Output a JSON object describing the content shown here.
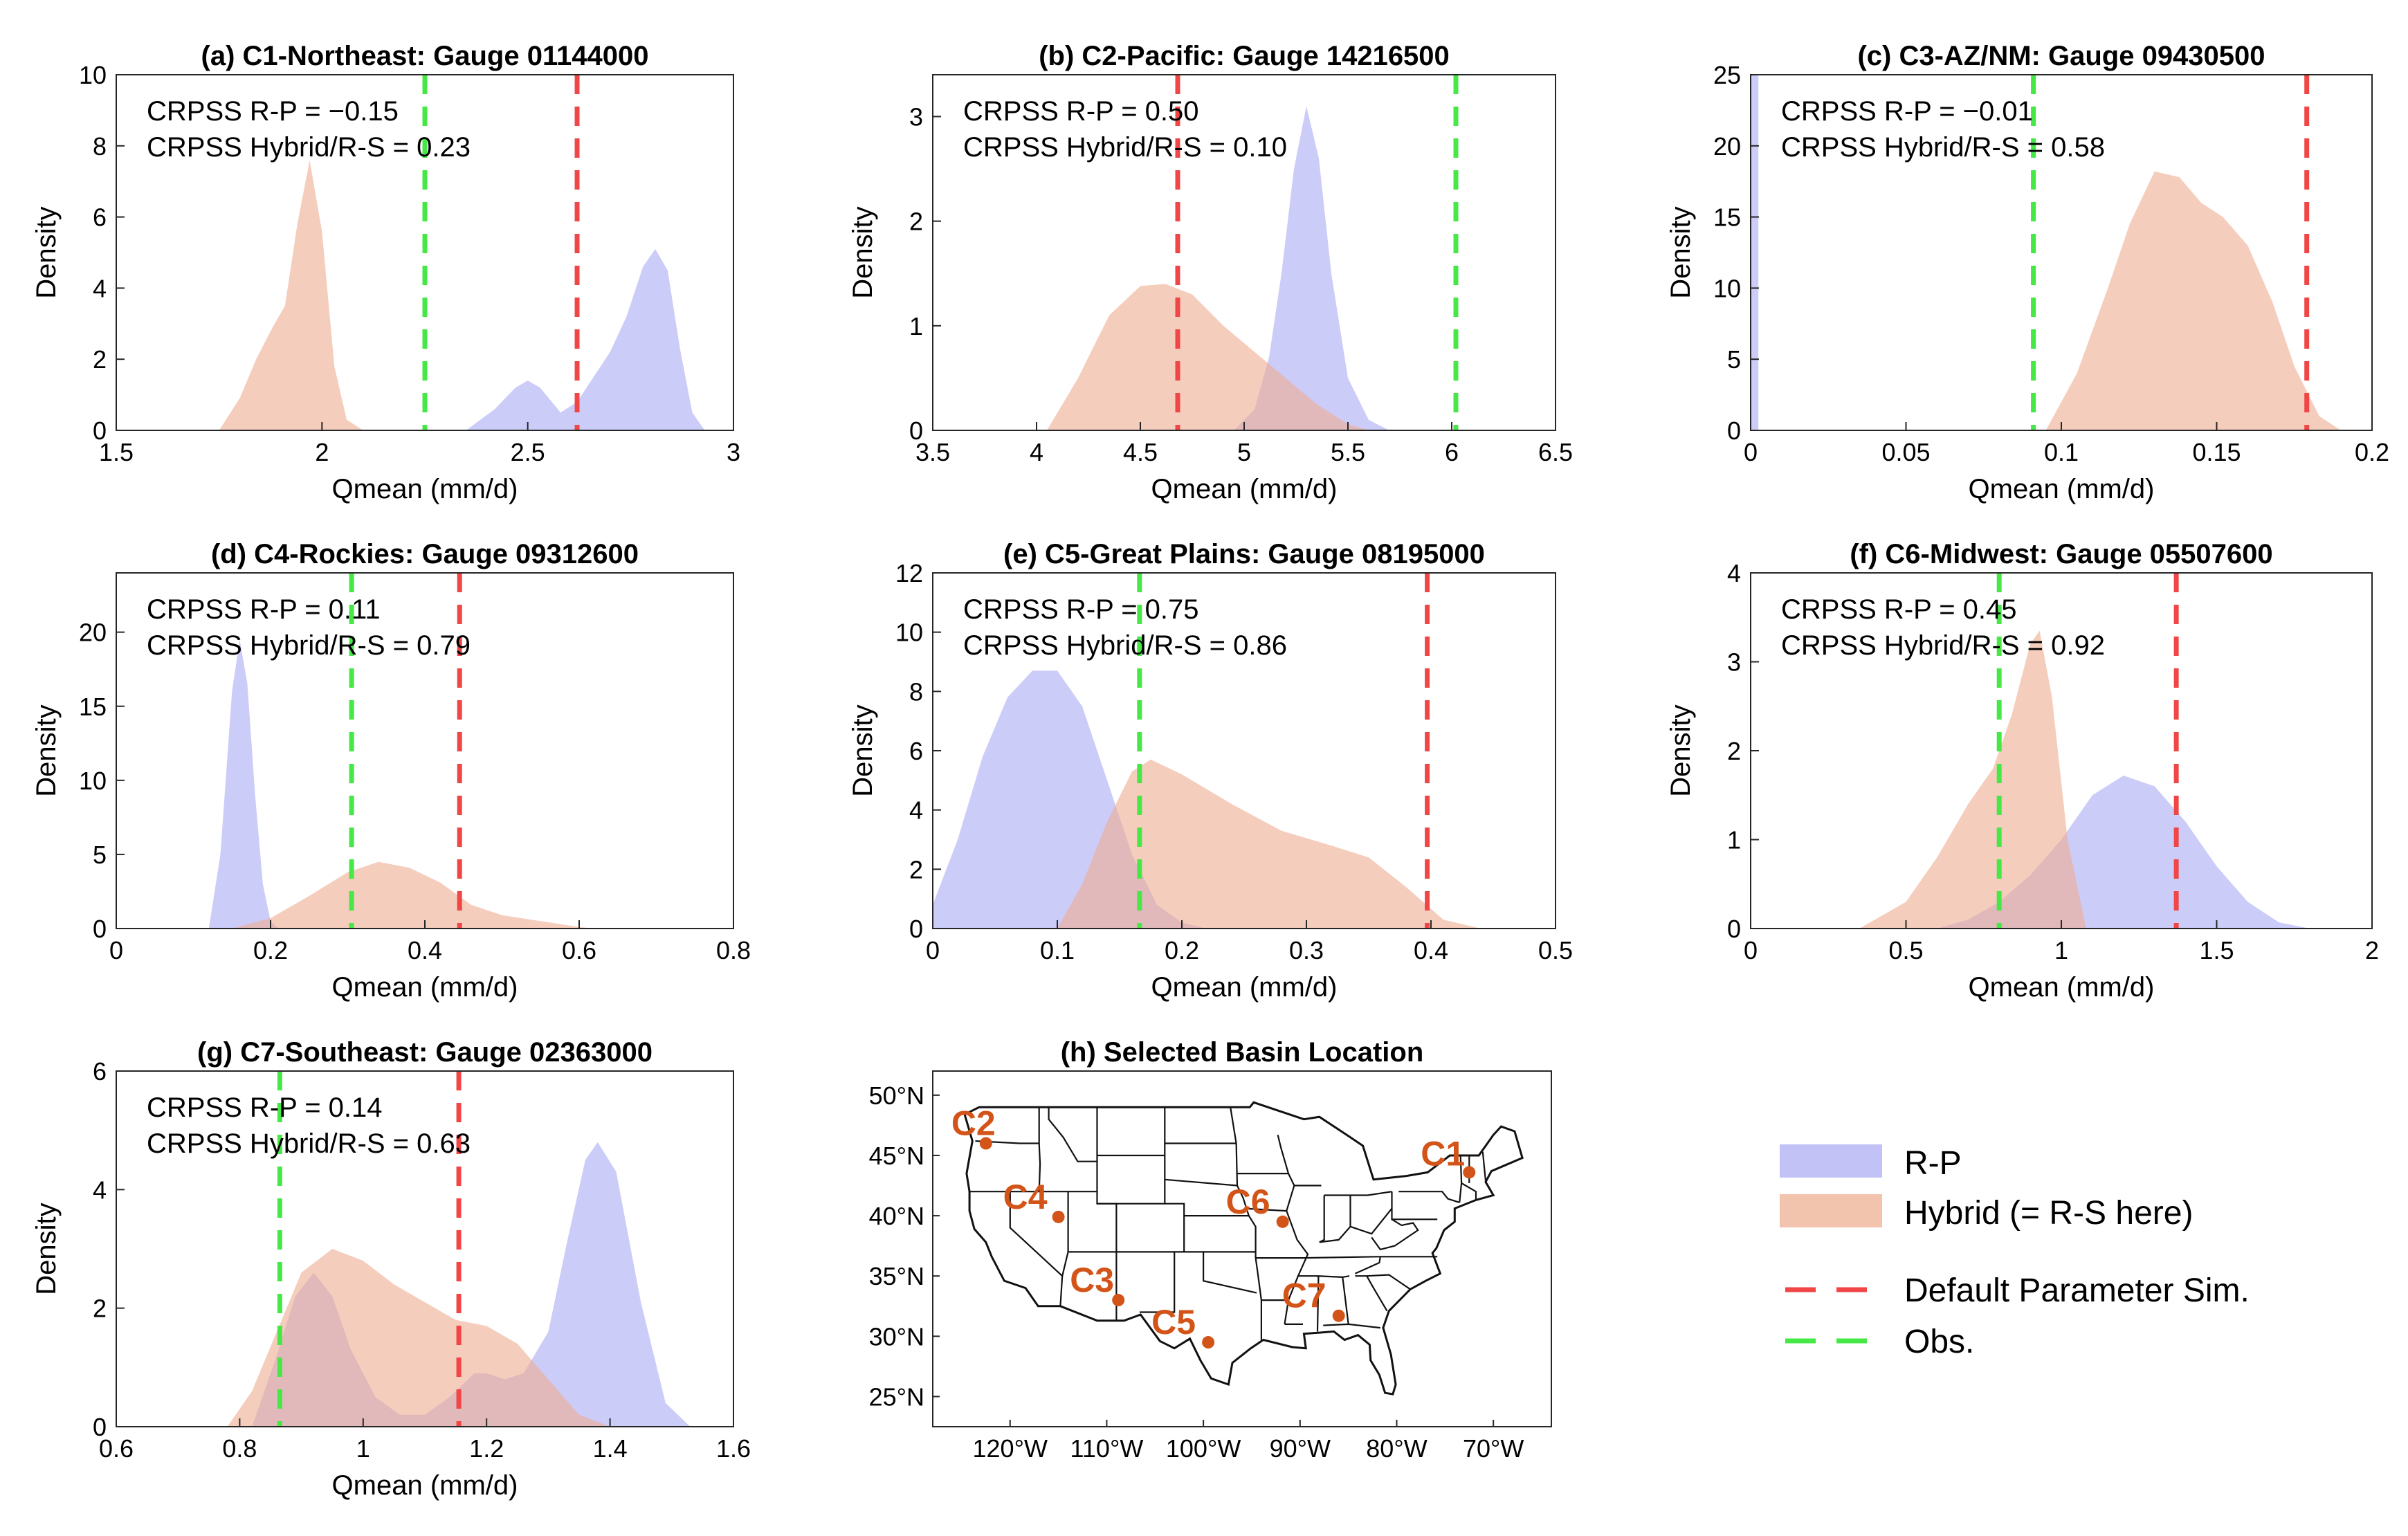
{
  "chart_data": [
    {
      "type": "area",
      "title": "(a) C1-Northeast: Gauge 01144000",
      "xlabel": "Qmean (mm/d)",
      "ylabel": "Density",
      "xlim": [
        1.5,
        3
      ],
      "ylim": [
        0,
        10
      ],
      "xticks": [
        "1.5",
        "2",
        "2.5",
        "3"
      ],
      "yticks": [
        "0",
        "2",
        "4",
        "6",
        "8",
        "10"
      ],
      "annotations": [
        "CRPSS R-P = −0.15",
        "CRPSS Hybrid/R-S = 0.23"
      ],
      "default_param_sim": 2.62,
      "obs": 2.25,
      "series": [
        {
          "name": "R-P",
          "x": [
            2.35,
            2.42,
            2.47,
            2.5,
            2.53,
            2.58,
            2.62,
            2.66,
            2.7,
            2.74,
            2.78,
            2.81,
            2.84,
            2.87,
            2.9,
            2.93
          ],
          "y": [
            0,
            0.6,
            1.2,
            1.4,
            1.2,
            0.5,
            0.8,
            1.5,
            2.2,
            3.2,
            4.6,
            5.1,
            4.5,
            2.3,
            0.5,
            0
          ]
        },
        {
          "name": "Hybrid (= R-S here)",
          "x": [
            1.75,
            1.8,
            1.84,
            1.88,
            1.91,
            1.94,
            1.97,
            2.0,
            2.03,
            2.06,
            2.1
          ],
          "y": [
            0,
            0.9,
            2.0,
            2.9,
            3.5,
            5.8,
            7.6,
            5.6,
            1.8,
            0.3,
            0
          ]
        }
      ]
    },
    {
      "type": "area",
      "title": "(b) C2-Pacific: Gauge 14216500",
      "xlabel": "Qmean (mm/d)",
      "ylabel": "Density",
      "xlim": [
        3.5,
        6.5
      ],
      "ylim": [
        0,
        3.4
      ],
      "xticks": [
        "3.5",
        "4",
        "4.5",
        "5",
        "5.5",
        "6",
        "6.5"
      ],
      "yticks": [
        "0",
        "1",
        "2",
        "3"
      ],
      "annotations": [
        "CRPSS R-P = 0.50",
        "CRPSS Hybrid/R-S = 0.10"
      ],
      "default_param_sim": 4.68,
      "obs": 6.02,
      "series": [
        {
          "name": "R-P",
          "x": [
            4.95,
            5.05,
            5.12,
            5.18,
            5.24,
            5.3,
            5.36,
            5.42,
            5.5,
            5.6,
            5.7
          ],
          "y": [
            0,
            0.2,
            0.7,
            1.5,
            2.5,
            3.1,
            2.6,
            1.5,
            0.5,
            0.1,
            0
          ]
        },
        {
          "name": "Hybrid (= R-S here)",
          "x": [
            4.05,
            4.2,
            4.35,
            4.5,
            4.62,
            4.75,
            4.9,
            5.05,
            5.2,
            5.35,
            5.5,
            5.6
          ],
          "y": [
            0,
            0.5,
            1.1,
            1.38,
            1.4,
            1.3,
            1.0,
            0.75,
            0.5,
            0.25,
            0.06,
            0
          ]
        }
      ]
    },
    {
      "type": "area",
      "title": "(c) C3-AZ/NM: Gauge 09430500",
      "xlabel": "Qmean (mm/d)",
      "ylabel": "Density",
      "xlim": [
        0,
        0.2
      ],
      "ylim": [
        0,
        25
      ],
      "xticks": [
        "0",
        "0.05",
        "0.1",
        "0.15",
        "0.2"
      ],
      "yticks": [
        "0",
        "5",
        "10",
        "15",
        "20",
        "25"
      ],
      "annotations": [
        "CRPSS R-P = −0.01",
        "CRPSS Hybrid/R-S = 0.58"
      ],
      "default_param_sim": 0.179,
      "obs": 0.091,
      "series": [
        {
          "name": "R-P",
          "x": [
            0,
            0,
            0.0025,
            0.0025
          ],
          "y": [
            0,
            25,
            25,
            0
          ]
        },
        {
          "name": "Hybrid (= R-S here)",
          "x": [
            0.095,
            0.105,
            0.115,
            0.122,
            0.13,
            0.138,
            0.145,
            0.152,
            0.16,
            0.168,
            0.175,
            0.183,
            0.19
          ],
          "y": [
            0,
            4,
            10,
            14.5,
            18.2,
            17.8,
            16,
            15,
            13,
            9,
            4.5,
            1,
            0
          ]
        }
      ]
    },
    {
      "type": "area",
      "title": "(d) C4-Rockies: Gauge 09312600",
      "xlabel": "Qmean (mm/d)",
      "ylabel": "Density",
      "xlim": [
        0,
        0.8
      ],
      "ylim": [
        0,
        24
      ],
      "xticks": [
        "0",
        "0.2",
        "0.4",
        "0.6",
        "0.8"
      ],
      "yticks": [
        "0",
        "5",
        "10",
        "15",
        "20"
      ],
      "annotations": [
        "CRPSS R-P = 0.11",
        "CRPSS Hybrid/R-S = 0.79"
      ],
      "default_param_sim": 0.445,
      "obs": 0.305,
      "series": [
        {
          "name": "R-P",
          "x": [
            0.12,
            0.135,
            0.15,
            0.16,
            0.17,
            0.18,
            0.19,
            0.2,
            0.21
          ],
          "y": [
            0,
            5,
            16,
            19.5,
            16.5,
            9,
            3,
            0.5,
            0
          ]
        },
        {
          "name": "Hybrid (= R-S here)",
          "x": [
            0.15,
            0.2,
            0.25,
            0.3,
            0.34,
            0.38,
            0.42,
            0.46,
            0.5,
            0.55,
            0.6,
            0.62
          ],
          "y": [
            0,
            0.7,
            2.2,
            3.8,
            4.5,
            4.1,
            3.1,
            1.6,
            0.9,
            0.5,
            0.1,
            0
          ]
        }
      ]
    },
    {
      "type": "area",
      "title": "(e) C5-Great Plains: Gauge 08195000",
      "xlabel": "Qmean (mm/d)",
      "ylabel": "Density",
      "xlim": [
        0,
        0.5
      ],
      "ylim": [
        0,
        12
      ],
      "xticks": [
        "0",
        "0.1",
        "0.2",
        "0.3",
        "0.4",
        "0.5"
      ],
      "yticks": [
        "0",
        "2",
        "4",
        "6",
        "8",
        "10",
        "12"
      ],
      "annotations": [
        "CRPSS R-P = 0.75",
        "CRPSS Hybrid/R-S = 0.86"
      ],
      "default_param_sim": 0.397,
      "obs": 0.166,
      "series": [
        {
          "name": "R-P",
          "x": [
            0,
            0.02,
            0.04,
            0.06,
            0.08,
            0.1,
            0.12,
            0.14,
            0.16,
            0.18,
            0.2,
            0.22
          ],
          "y": [
            0.8,
            3.0,
            5.8,
            7.8,
            8.7,
            8.7,
            7.5,
            5.0,
            2.5,
            0.8,
            0.2,
            0
          ]
        },
        {
          "name": "Hybrid (= R-S here)",
          "x": [
            0.1,
            0.12,
            0.14,
            0.16,
            0.175,
            0.2,
            0.24,
            0.28,
            0.32,
            0.35,
            0.38,
            0.41,
            0.44
          ],
          "y": [
            0,
            1.5,
            3.6,
            5.3,
            5.7,
            5.2,
            4.2,
            3.3,
            2.8,
            2.4,
            1.4,
            0.3,
            0
          ]
        }
      ]
    },
    {
      "type": "area",
      "title": "(f) C6-Midwest: Gauge 05507600",
      "xlabel": "Qmean (mm/d)",
      "ylabel": "Density",
      "xlim": [
        0,
        2
      ],
      "ylim": [
        0,
        4
      ],
      "xticks": [
        "0",
        "0.5",
        "1",
        "1.5",
        "2"
      ],
      "yticks": [
        "0",
        "1",
        "2",
        "3",
        "4"
      ],
      "annotations": [
        "CRPSS R-P = 0.45",
        "CRPSS Hybrid/R-S = 0.92"
      ],
      "default_param_sim": 1.37,
      "obs": 0.8,
      "series": [
        {
          "name": "R-P",
          "x": [
            0.6,
            0.7,
            0.8,
            0.9,
            1.0,
            1.1,
            1.2,
            1.3,
            1.4,
            1.5,
            1.6,
            1.7,
            1.8
          ],
          "y": [
            0,
            0.1,
            0.3,
            0.6,
            1.0,
            1.5,
            1.72,
            1.6,
            1.2,
            0.7,
            0.3,
            0.07,
            0
          ]
        },
        {
          "name": "Hybrid (= R-S here)",
          "x": [
            0.35,
            0.5,
            0.6,
            0.7,
            0.78,
            0.84,
            0.9,
            0.93,
            0.97,
            1.02,
            1.08
          ],
          "y": [
            0,
            0.3,
            0.8,
            1.4,
            1.8,
            2.4,
            3.2,
            3.35,
            2.6,
            1.0,
            0
          ]
        }
      ]
    },
    {
      "type": "area",
      "title": "(g) C7-Southeast: Gauge 02363000",
      "xlabel": "Qmean (mm/d)",
      "ylabel": "Density",
      "xlim": [
        0.6,
        1.6
      ],
      "ylim": [
        0,
        6
      ],
      "xticks": [
        "0.6",
        "0.8",
        "1",
        "1.2",
        "1.4",
        "1.6"
      ],
      "yticks": [
        "0",
        "2",
        "4",
        "6"
      ],
      "annotations": [
        "CRPSS R-P = 0.14",
        "CRPSS Hybrid/R-S = 0.63"
      ],
      "default_param_sim": 1.155,
      "obs": 0.865,
      "series": [
        {
          "name": "R-P",
          "x": [
            0.82,
            0.86,
            0.89,
            0.92,
            0.95,
            0.98,
            1.02,
            1.06,
            1.1,
            1.14,
            1.18,
            1.2,
            1.23,
            1.26,
            1.3,
            1.33,
            1.36,
            1.38,
            1.41,
            1.45,
            1.49,
            1.53
          ],
          "y": [
            0,
            1.2,
            2.2,
            2.6,
            2.2,
            1.3,
            0.5,
            0.2,
            0.2,
            0.5,
            0.9,
            0.9,
            0.8,
            0.9,
            1.6,
            3.1,
            4.5,
            4.8,
            4.3,
            2.1,
            0.4,
            0
          ]
        },
        {
          "name": "Hybrid (= R-S here)",
          "x": [
            0.78,
            0.82,
            0.86,
            0.9,
            0.95,
            1.0,
            1.05,
            1.1,
            1.15,
            1.2,
            1.25,
            1.3,
            1.35,
            1.4
          ],
          "y": [
            0,
            0.6,
            1.6,
            2.6,
            3.0,
            2.8,
            2.4,
            2.1,
            1.8,
            1.7,
            1.4,
            0.8,
            0.2,
            0
          ]
        }
      ]
    }
  ],
  "map": {
    "title": "(h) Selected Basin Location",
    "lon_ticks": [
      "120°W",
      "110°W",
      "100°W",
      "90°W",
      "80°W",
      "70°W"
    ],
    "lat_ticks": [
      "50°N",
      "45°N",
      "40°N",
      "35°N",
      "30°N",
      "25°N"
    ],
    "basins": [
      {
        "label": "C1",
        "lon": -72.5,
        "lat": 43.6
      },
      {
        "label": "C2",
        "lon": -122.5,
        "lat": 46.0
      },
      {
        "label": "C3",
        "lon": -108.8,
        "lat": 33.0
      },
      {
        "label": "C4",
        "lon": -115.0,
        "lat": 39.9
      },
      {
        "label": "C5",
        "lon": -99.5,
        "lat": 29.5
      },
      {
        "label": "C6",
        "lon": -91.8,
        "lat": 39.5
      },
      {
        "label": "C7",
        "lon": -86.0,
        "lat": 31.7
      }
    ]
  },
  "legend": {
    "items": [
      {
        "label": "R-P",
        "kind": "patch",
        "color": "#c2c2f7"
      },
      {
        "label": "Hybrid (= R-S here)",
        "kind": "patch",
        "color": "#f2c3ad"
      },
      {
        "label": "Default Parameter Sim.",
        "kind": "dash",
        "color": "#f04646"
      },
      {
        "label": "Obs.",
        "kind": "dash",
        "color": "#46e846"
      }
    ]
  },
  "colors": {
    "rp_fill": "#aaaaf5",
    "hybrid_fill": "#eeac90",
    "default_line": "#f04646",
    "obs_line": "#46e846",
    "marker": "#d35418"
  }
}
